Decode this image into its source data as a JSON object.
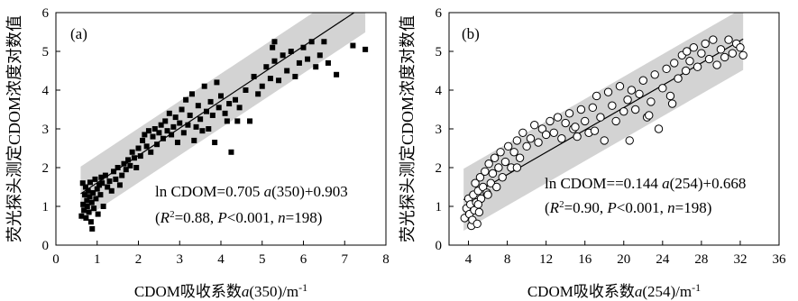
{
  "chart_data": [
    {
      "type": "scatter",
      "panel_label": "(a)",
      "xlabel": {
        "pre": "CDOM吸收系数",
        "var": "a",
        "post": "(350)/m",
        "sup": "-1"
      },
      "ylabel": "荧光探头测定CDOM浓度对数值",
      "xlim": [
        0,
        8
      ],
      "ylim": [
        0,
        6
      ],
      "xticks": [
        0,
        1,
        2,
        3,
        4,
        5,
        6,
        7,
        8
      ],
      "yticks": [
        0,
        1,
        2,
        3,
        4,
        5,
        6
      ],
      "marker": "filled-square",
      "band_color": "#d3d3d3",
      "fit": {
        "slope": 0.705,
        "intercept": 0.903,
        "x_range": [
          0.6,
          7.5
        ]
      },
      "band": {
        "x_range": [
          0.6,
          7.5
        ],
        "upper_offset": 0.7,
        "lower_offset": 0.7
      },
      "equation": {
        "lhs": "ln CDOM=0.705 ",
        "var": "a",
        "rhs": "(350)+0.903"
      },
      "stats": {
        "r_label": "R",
        "r_sup": "2",
        "r_val": "=0.88, ",
        "p_label": "P",
        "p_val": "<0.001, ",
        "n_label": "n",
        "n_val": "=198)"
      },
      "points": [
        [
          0.62,
          0.75
        ],
        [
          0.65,
          1.6
        ],
        [
          0.66,
          1.05
        ],
        [
          0.68,
          0.9
        ],
        [
          0.7,
          1.3
        ],
        [
          0.72,
          1.5
        ],
        [
          0.73,
          0.7
        ],
        [
          0.75,
          1.15
        ],
        [
          0.76,
          1.0
        ],
        [
          0.78,
          1.4
        ],
        [
          0.8,
          0.85
        ],
        [
          0.82,
          1.25
        ],
        [
          0.83,
          1.62
        ],
        [
          0.85,
          0.6
        ],
        [
          0.87,
          1.1
        ],
        [
          0.88,
          0.42
        ],
        [
          0.9,
          1.35
        ],
        [
          0.92,
          0.95
        ],
        [
          0.95,
          1.7
        ],
        [
          0.97,
          1.2
        ],
        [
          1.0,
          1.45
        ],
        [
          1.02,
          0.8
        ],
        [
          1.05,
          1.55
        ],
        [
          1.08,
          1.3
        ],
        [
          1.1,
          1.75
        ],
        [
          1.12,
          1.6
        ],
        [
          1.15,
          1.0
        ],
        [
          1.2,
          1.8
        ],
        [
          1.25,
          1.5
        ],
        [
          1.3,
          1.65
        ],
        [
          1.35,
          1.4
        ],
        [
          1.4,
          1.9
        ],
        [
          1.45,
          1.7
        ],
        [
          1.5,
          2.0
        ],
        [
          1.55,
          1.55
        ],
        [
          1.6,
          1.8
        ],
        [
          1.65,
          2.1
        ],
        [
          1.7,
          1.95
        ],
        [
          1.75,
          2.2
        ],
        [
          1.8,
          2.05
        ],
        [
          1.85,
          2.4
        ],
        [
          1.9,
          2.25
        ],
        [
          1.95,
          2.0
        ],
        [
          2.0,
          2.5
        ],
        [
          2.05,
          2.3
        ],
        [
          2.1,
          2.7
        ],
        [
          2.15,
          2.85
        ],
        [
          2.2,
          2.55
        ],
        [
          2.25,
          2.95
        ],
        [
          2.3,
          2.4
        ],
        [
          2.35,
          2.8
        ],
        [
          2.4,
          3.0
        ],
        [
          2.45,
          2.6
        ],
        [
          2.5,
          2.9
        ],
        [
          2.55,
          3.1
        ],
        [
          2.6,
          2.75
        ],
        [
          2.65,
          3.2
        ],
        [
          2.7,
          2.95
        ],
        [
          2.75,
          3.4
        ],
        [
          2.8,
          2.85
        ],
        [
          2.85,
          3.05
        ],
        [
          2.9,
          3.3
        ],
        [
          2.95,
          2.65
        ],
        [
          3.0,
          3.15
        ],
        [
          3.05,
          3.5
        ],
        [
          3.1,
          2.9
        ],
        [
          3.15,
          3.75
        ],
        [
          3.2,
          3.1
        ],
        [
          3.25,
          3.35
        ],
        [
          3.3,
          3.9
        ],
        [
          3.35,
          2.7
        ],
        [
          3.4,
          3.05
        ],
        [
          3.45,
          3.6
        ],
        [
          3.5,
          3.25
        ],
        [
          3.55,
          2.95
        ],
        [
          3.6,
          4.1
        ],
        [
          3.65,
          3.45
        ],
        [
          3.7,
          3.0
        ],
        [
          3.75,
          3.7
        ],
        [
          3.8,
          3.35
        ],
        [
          3.85,
          2.65
        ],
        [
          3.9,
          4.2
        ],
        [
          3.95,
          3.55
        ],
        [
          4.0,
          3.85
        ],
        [
          4.1,
          3.4
        ],
        [
          4.15,
          3.2
        ],
        [
          4.2,
          3.65
        ],
        [
          4.25,
          2.4
        ],
        [
          4.35,
          3.75
        ],
        [
          4.45,
          3.55
        ],
        [
          4.6,
          4.0
        ],
        [
          4.7,
          3.2
        ],
        [
          4.8,
          4.35
        ],
        [
          4.9,
          3.9
        ],
        [
          5.0,
          4.1
        ],
        [
          5.1,
          4.6
        ],
        [
          5.2,
          4.3
        ],
        [
          5.3,
          4.75
        ],
        [
          5.4,
          4.25
        ],
        [
          5.5,
          4.9
        ],
        [
          5.6,
          4.5
        ],
        [
          5.7,
          5.0
        ],
        [
          5.8,
          4.35
        ],
        [
          5.9,
          4.7
        ],
        [
          6.0,
          5.1
        ],
        [
          6.1,
          4.8
        ],
        [
          6.2,
          5.25
        ],
        [
          6.3,
          4.6
        ],
        [
          6.4,
          4.9
        ],
        [
          6.5,
          5.25
        ],
        [
          6.6,
          4.7
        ],
        [
          6.8,
          4.4
        ],
        [
          7.2,
          5.15
        ],
        [
          7.5,
          5.05
        ],
        [
          5.3,
          5.25
        ],
        [
          5.25,
          5.1
        ],
        [
          4.4,
          3.2
        ]
      ]
    },
    {
      "type": "scatter",
      "panel_label": "(b)",
      "xlabel": {
        "pre": "CDOM吸收系数",
        "var": "a",
        "post": "(254)/m",
        "sup": "-1"
      },
      "ylabel": "荧光探头测定CDOM浓度对数值",
      "xlim": [
        2,
        36
      ],
      "ylim": [
        0,
        6
      ],
      "xticks": [
        4,
        8,
        12,
        16,
        20,
        24,
        28,
        32,
        36
      ],
      "yticks": [
        0,
        1,
        2,
        3,
        4,
        5,
        6
      ],
      "marker": "open-circle",
      "band_color": "#d3d3d3",
      "fit": {
        "slope": 0.144,
        "intercept": 0.668,
        "x_range": [
          3.5,
          32.3
        ]
      },
      "band": {
        "x_range": [
          3.5,
          32.3
        ],
        "upper_offset": 0.8,
        "lower_offset": 0.8
      },
      "equation": {
        "lhs": "ln CDOM==0.144 ",
        "var": "a",
        "rhs": "(254)+0.668"
      },
      "stats": {
        "r_label": "R",
        "r_sup": "2",
        "r_val": "=0.90, ",
        "p_label": "P",
        "p_val": "<0.001, ",
        "n_label": "n",
        "n_val": "=198)"
      },
      "points": [
        [
          3.6,
          0.7
        ],
        [
          3.8,
          0.95
        ],
        [
          4.0,
          1.2
        ],
        [
          4.1,
          0.8
        ],
        [
          4.2,
          1.05
        ],
        [
          4.3,
          0.5
        ],
        [
          4.4,
          0.65
        ],
        [
          4.5,
          1.3
        ],
        [
          4.6,
          0.9
        ],
        [
          4.7,
          1.6
        ],
        [
          4.8,
          1.1
        ],
        [
          4.9,
          0.55
        ],
        [
          5.0,
          1.4
        ],
        [
          5.1,
          0.85
        ],
        [
          5.2,
          1.75
        ],
        [
          5.3,
          1.2
        ],
        [
          5.5,
          1.5
        ],
        [
          5.7,
          1.9
        ],
        [
          5.9,
          1.35
        ],
        [
          6.1,
          2.1
        ],
        [
          6.3,
          1.6
        ],
        [
          6.5,
          1.85
        ],
        [
          6.7,
          2.25
        ],
        [
          6.9,
          1.5
        ],
        [
          7.1,
          2.0
        ],
        [
          7.3,
          2.4
        ],
        [
          7.5,
          1.75
        ],
        [
          7.8,
          2.15
        ],
        [
          8.1,
          2.55
        ],
        [
          8.4,
          2.0
        ],
        [
          8.7,
          2.4
        ],
        [
          9.0,
          2.7
        ],
        [
          9.3,
          2.25
        ],
        [
          9.6,
          2.9
        ],
        [
          10.0,
          2.55
        ],
        [
          10.4,
          2.75
        ],
        [
          10.8,
          3.1
        ],
        [
          11.2,
          2.65
        ],
        [
          11.6,
          3.0
        ],
        [
          12.0,
          2.85
        ],
        [
          12.4,
          3.2
        ],
        [
          12.8,
          2.9
        ],
        [
          13.2,
          3.3
        ],
        [
          13.6,
          2.75
        ],
        [
          14.0,
          3.15
        ],
        [
          14.4,
          3.4
        ],
        [
          14.8,
          3.0
        ],
        [
          15.2,
          2.8
        ],
        [
          15.6,
          3.5
        ],
        [
          16.0,
          3.2
        ],
        [
          16.4,
          2.9
        ],
        [
          16.8,
          3.55
        ],
        [
          17.2,
          3.85
        ],
        [
          17.6,
          3.3
        ],
        [
          18.0,
          2.7
        ],
        [
          18.4,
          3.95
        ],
        [
          18.8,
          3.6
        ],
        [
          19.2,
          3.2
        ],
        [
          19.6,
          4.1
        ],
        [
          20.0,
          3.45
        ],
        [
          20.4,
          3.75
        ],
        [
          20.8,
          4.0
        ],
        [
          21.2,
          3.5
        ],
        [
          21.6,
          3.9
        ],
        [
          22.0,
          4.25
        ],
        [
          22.4,
          3.3
        ],
        [
          22.8,
          3.7
        ],
        [
          23.2,
          4.4
        ],
        [
          23.6,
          3.0
        ],
        [
          24.0,
          4.05
        ],
        [
          24.4,
          4.55
        ],
        [
          24.8,
          3.85
        ],
        [
          25.2,
          4.7
        ],
        [
          25.6,
          4.3
        ],
        [
          26.0,
          4.9
        ],
        [
          26.4,
          4.5
        ],
        [
          26.8,
          4.75
        ],
        [
          27.2,
          5.1
        ],
        [
          27.6,
          4.6
        ],
        [
          28.0,
          4.95
        ],
        [
          28.4,
          5.2
        ],
        [
          28.8,
          4.8
        ],
        [
          29.2,
          5.3
        ],
        [
          29.6,
          4.65
        ],
        [
          30.0,
          5.05
        ],
        [
          30.4,
          4.85
        ],
        [
          30.8,
          5.3
        ],
        [
          31.2,
          4.95
        ],
        [
          31.6,
          5.2
        ],
        [
          32.0,
          5.1
        ],
        [
          32.3,
          4.9
        ],
        [
          26.5,
          5.0
        ],
        [
          25.0,
          3.65
        ],
        [
          20.6,
          2.7
        ],
        [
          22.6,
          3.35
        ],
        [
          15.0,
          3.05
        ],
        [
          17.0,
          2.95
        ],
        [
          9.0,
          2.0
        ],
        [
          6.0,
          1.3
        ],
        [
          5.0,
          1.05
        ]
      ]
    }
  ]
}
